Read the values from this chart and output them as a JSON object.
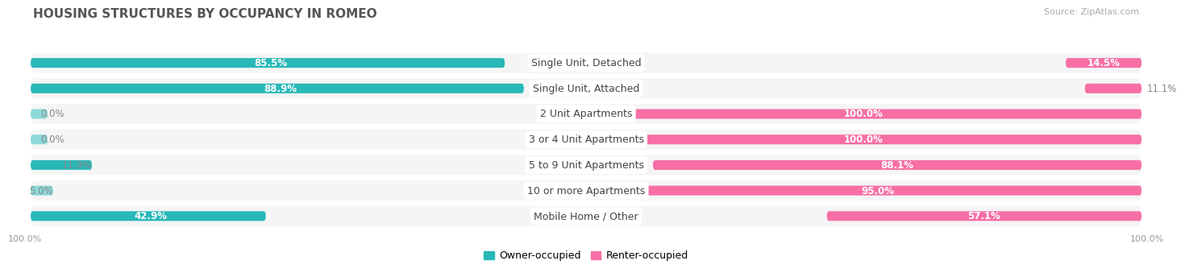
{
  "title": "HOUSING STRUCTURES BY OCCUPANCY IN ROMEO",
  "source": "Source: ZipAtlas.com",
  "categories": [
    "Single Unit, Detached",
    "Single Unit, Attached",
    "2 Unit Apartments",
    "3 or 4 Unit Apartments",
    "5 to 9 Unit Apartments",
    "10 or more Apartments",
    "Mobile Home / Other"
  ],
  "owner_pct": [
    85.5,
    88.9,
    0.0,
    0.0,
    11.9,
    5.0,
    42.9
  ],
  "renter_pct": [
    14.5,
    11.1,
    100.0,
    100.0,
    88.1,
    95.0,
    57.1
  ],
  "owner_color": "#29b8b8",
  "renter_color": "#f76fa5",
  "owner_color_light": "#8ed8d8",
  "renter_color_light": "#f9b8d0",
  "row_bg_color": "#ebebeb",
  "row_pill_color": "#f5f5f5",
  "title_color": "#555555",
  "source_color": "#aaaaaa",
  "label_color": "#444444",
  "pct_color_inside": "#ffffff",
  "pct_color_outside": "#888888",
  "title_fontsize": 11,
  "label_fontsize": 9,
  "pct_fontsize": 8.5,
  "axis_label_fontsize": 8,
  "legend_fontsize": 9
}
